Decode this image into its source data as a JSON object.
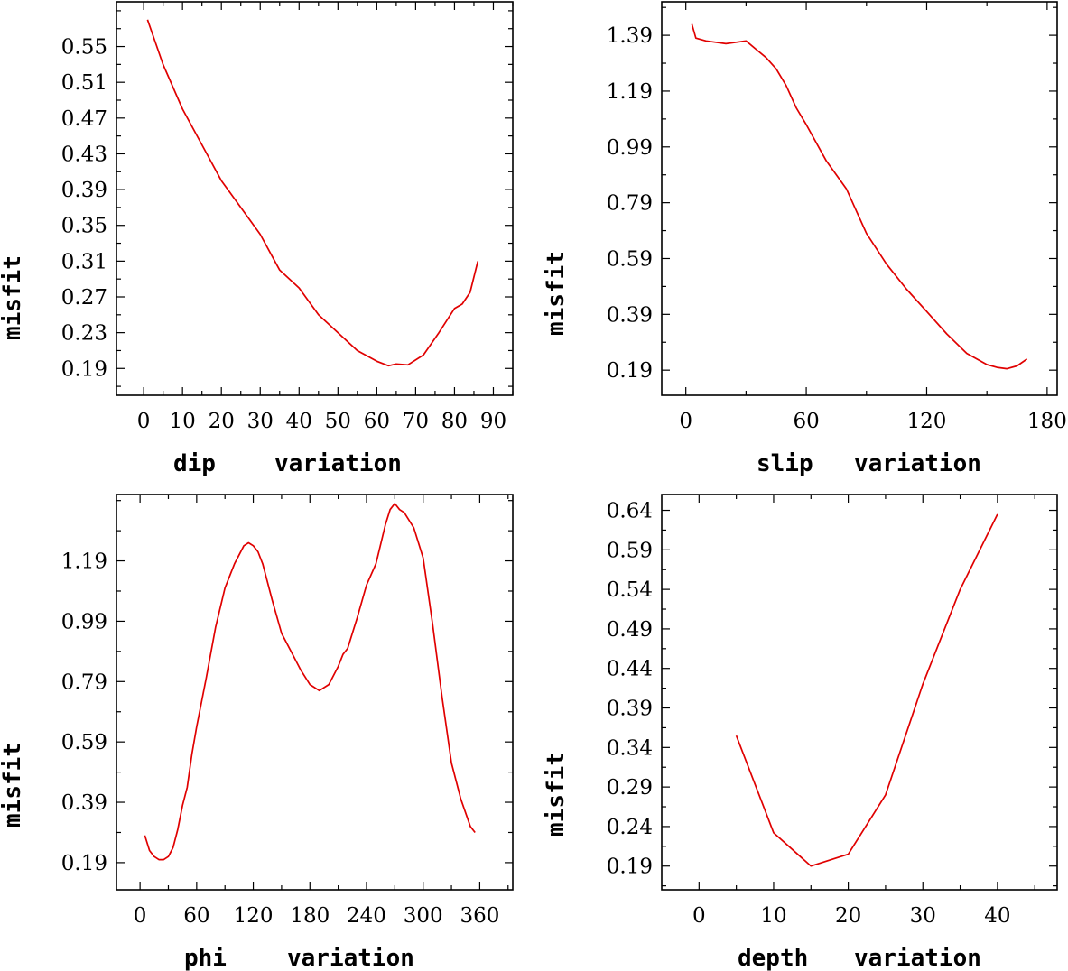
{
  "chart_data": [
    {
      "type": "line",
      "xlabel": "dip",
      "xlabel_suffix": "variation",
      "ylabel": "misfit",
      "xlim": [
        -7,
        95
      ],
      "ylim": [
        0.16,
        0.6
      ],
      "xticks": [
        0,
        10,
        20,
        30,
        40,
        50,
        60,
        70,
        80,
        90
      ],
      "xtick_labels": [
        "0",
        "10",
        "20",
        "30",
        "40",
        "50",
        "60",
        "70",
        "80",
        "90"
      ],
      "yticks": [
        0.19,
        0.23,
        0.27,
        0.31,
        0.35,
        0.39,
        0.43,
        0.47,
        0.51,
        0.55
      ],
      "ytick_labels": [
        "0.19",
        "0.23",
        "0.27",
        "0.31",
        "0.35",
        "0.39",
        "0.43",
        "0.47",
        "0.51",
        "0.55"
      ],
      "color": "#e00000",
      "x": [
        1,
        5,
        10,
        15,
        20,
        25,
        30,
        35,
        40,
        45,
        50,
        55,
        60,
        63,
        65,
        68,
        72,
        76,
        80,
        82,
        84,
        86
      ],
      "y": [
        0.58,
        0.53,
        0.48,
        0.44,
        0.4,
        0.37,
        0.34,
        0.3,
        0.28,
        0.25,
        0.23,
        0.21,
        0.198,
        0.193,
        0.195,
        0.194,
        0.205,
        0.23,
        0.257,
        0.262,
        0.275,
        0.31
      ]
    },
    {
      "type": "line",
      "xlabel": "slip",
      "xlabel_suffix": "variation",
      "ylabel": "misfit",
      "xlim": [
        -12,
        185
      ],
      "ylim": [
        0.1,
        1.51
      ],
      "xticks": [
        0,
        60,
        120,
        180
      ],
      "xtick_labels": [
        "0",
        "60",
        "120",
        "180"
      ],
      "yticks": [
        0.19,
        0.39,
        0.59,
        0.79,
        0.99,
        1.19,
        1.39
      ],
      "ytick_labels": [
        "0.19",
        "0.39",
        "0.59",
        "0.79",
        "0.99",
        "1.19",
        "1.39"
      ],
      "color": "#e00000",
      "x": [
        3,
        5,
        10,
        20,
        30,
        35,
        40,
        45,
        50,
        55,
        60,
        70,
        80,
        90,
        100,
        110,
        120,
        130,
        140,
        150,
        155,
        160,
        165,
        170
      ],
      "y": [
        1.43,
        1.38,
        1.37,
        1.36,
        1.37,
        1.34,
        1.31,
        1.27,
        1.21,
        1.13,
        1.07,
        0.94,
        0.84,
        0.68,
        0.57,
        0.48,
        0.4,
        0.32,
        0.25,
        0.21,
        0.2,
        0.195,
        0.205,
        0.23
      ]
    },
    {
      "type": "line",
      "xlabel": "phi",
      "xlabel_suffix": "variation",
      "ylabel": "misfit",
      "xlim": [
        -25,
        395
      ],
      "ylim": [
        0.1,
        1.41
      ],
      "xticks": [
        0,
        60,
        120,
        180,
        240,
        300,
        360
      ],
      "xtick_labels": [
        "0",
        "60",
        "120",
        "180",
        "240",
        "300",
        "360"
      ],
      "yticks": [
        0.19,
        0.39,
        0.59,
        0.79,
        0.99,
        1.19
      ],
      "ytick_labels": [
        "0.19",
        "0.39",
        "0.59",
        "0.79",
        "0.99",
        "1.19"
      ],
      "color": "#e00000",
      "x": [
        5,
        10,
        15,
        20,
        25,
        30,
        35,
        40,
        45,
        50,
        55,
        60,
        70,
        80,
        90,
        100,
        110,
        115,
        120,
        125,
        130,
        140,
        150,
        160,
        170,
        180,
        190,
        200,
        210,
        215,
        220,
        230,
        240,
        250,
        260,
        265,
        270,
        275,
        280,
        290,
        300,
        310,
        320,
        330,
        340,
        350,
        355
      ],
      "y": [
        0.28,
        0.23,
        0.21,
        0.2,
        0.2,
        0.21,
        0.24,
        0.3,
        0.38,
        0.44,
        0.55,
        0.64,
        0.8,
        0.97,
        1.1,
        1.18,
        1.24,
        1.25,
        1.24,
        1.22,
        1.18,
        1.06,
        0.95,
        0.89,
        0.83,
        0.78,
        0.76,
        0.78,
        0.84,
        0.88,
        0.9,
        1.0,
        1.11,
        1.18,
        1.31,
        1.36,
        1.38,
        1.36,
        1.35,
        1.3,
        1.2,
        0.98,
        0.74,
        0.52,
        0.4,
        0.31,
        0.29
      ]
    },
    {
      "type": "line",
      "xlabel": "depth",
      "xlabel_suffix": "variation",
      "ylabel": "misfit",
      "xlim": [
        -5,
        48
      ],
      "ylim": [
        0.16,
        0.66
      ],
      "xticks": [
        0,
        10,
        20,
        30,
        40
      ],
      "xtick_labels": [
        "0",
        "10",
        "20",
        "30",
        "40"
      ],
      "yticks": [
        0.19,
        0.24,
        0.29,
        0.34,
        0.39,
        0.44,
        0.49,
        0.54,
        0.59,
        0.64
      ],
      "ytick_labels": [
        "0.19",
        "0.24",
        "0.29",
        "0.34",
        "0.39",
        "0.44",
        "0.49",
        "0.54",
        "0.59",
        "0.64"
      ],
      "color": "#e00000",
      "x": [
        5,
        10,
        15,
        20,
        25,
        30,
        35,
        40
      ],
      "y": [
        0.355,
        0.232,
        0.19,
        0.205,
        0.28,
        0.42,
        0.54,
        0.635
      ]
    }
  ]
}
